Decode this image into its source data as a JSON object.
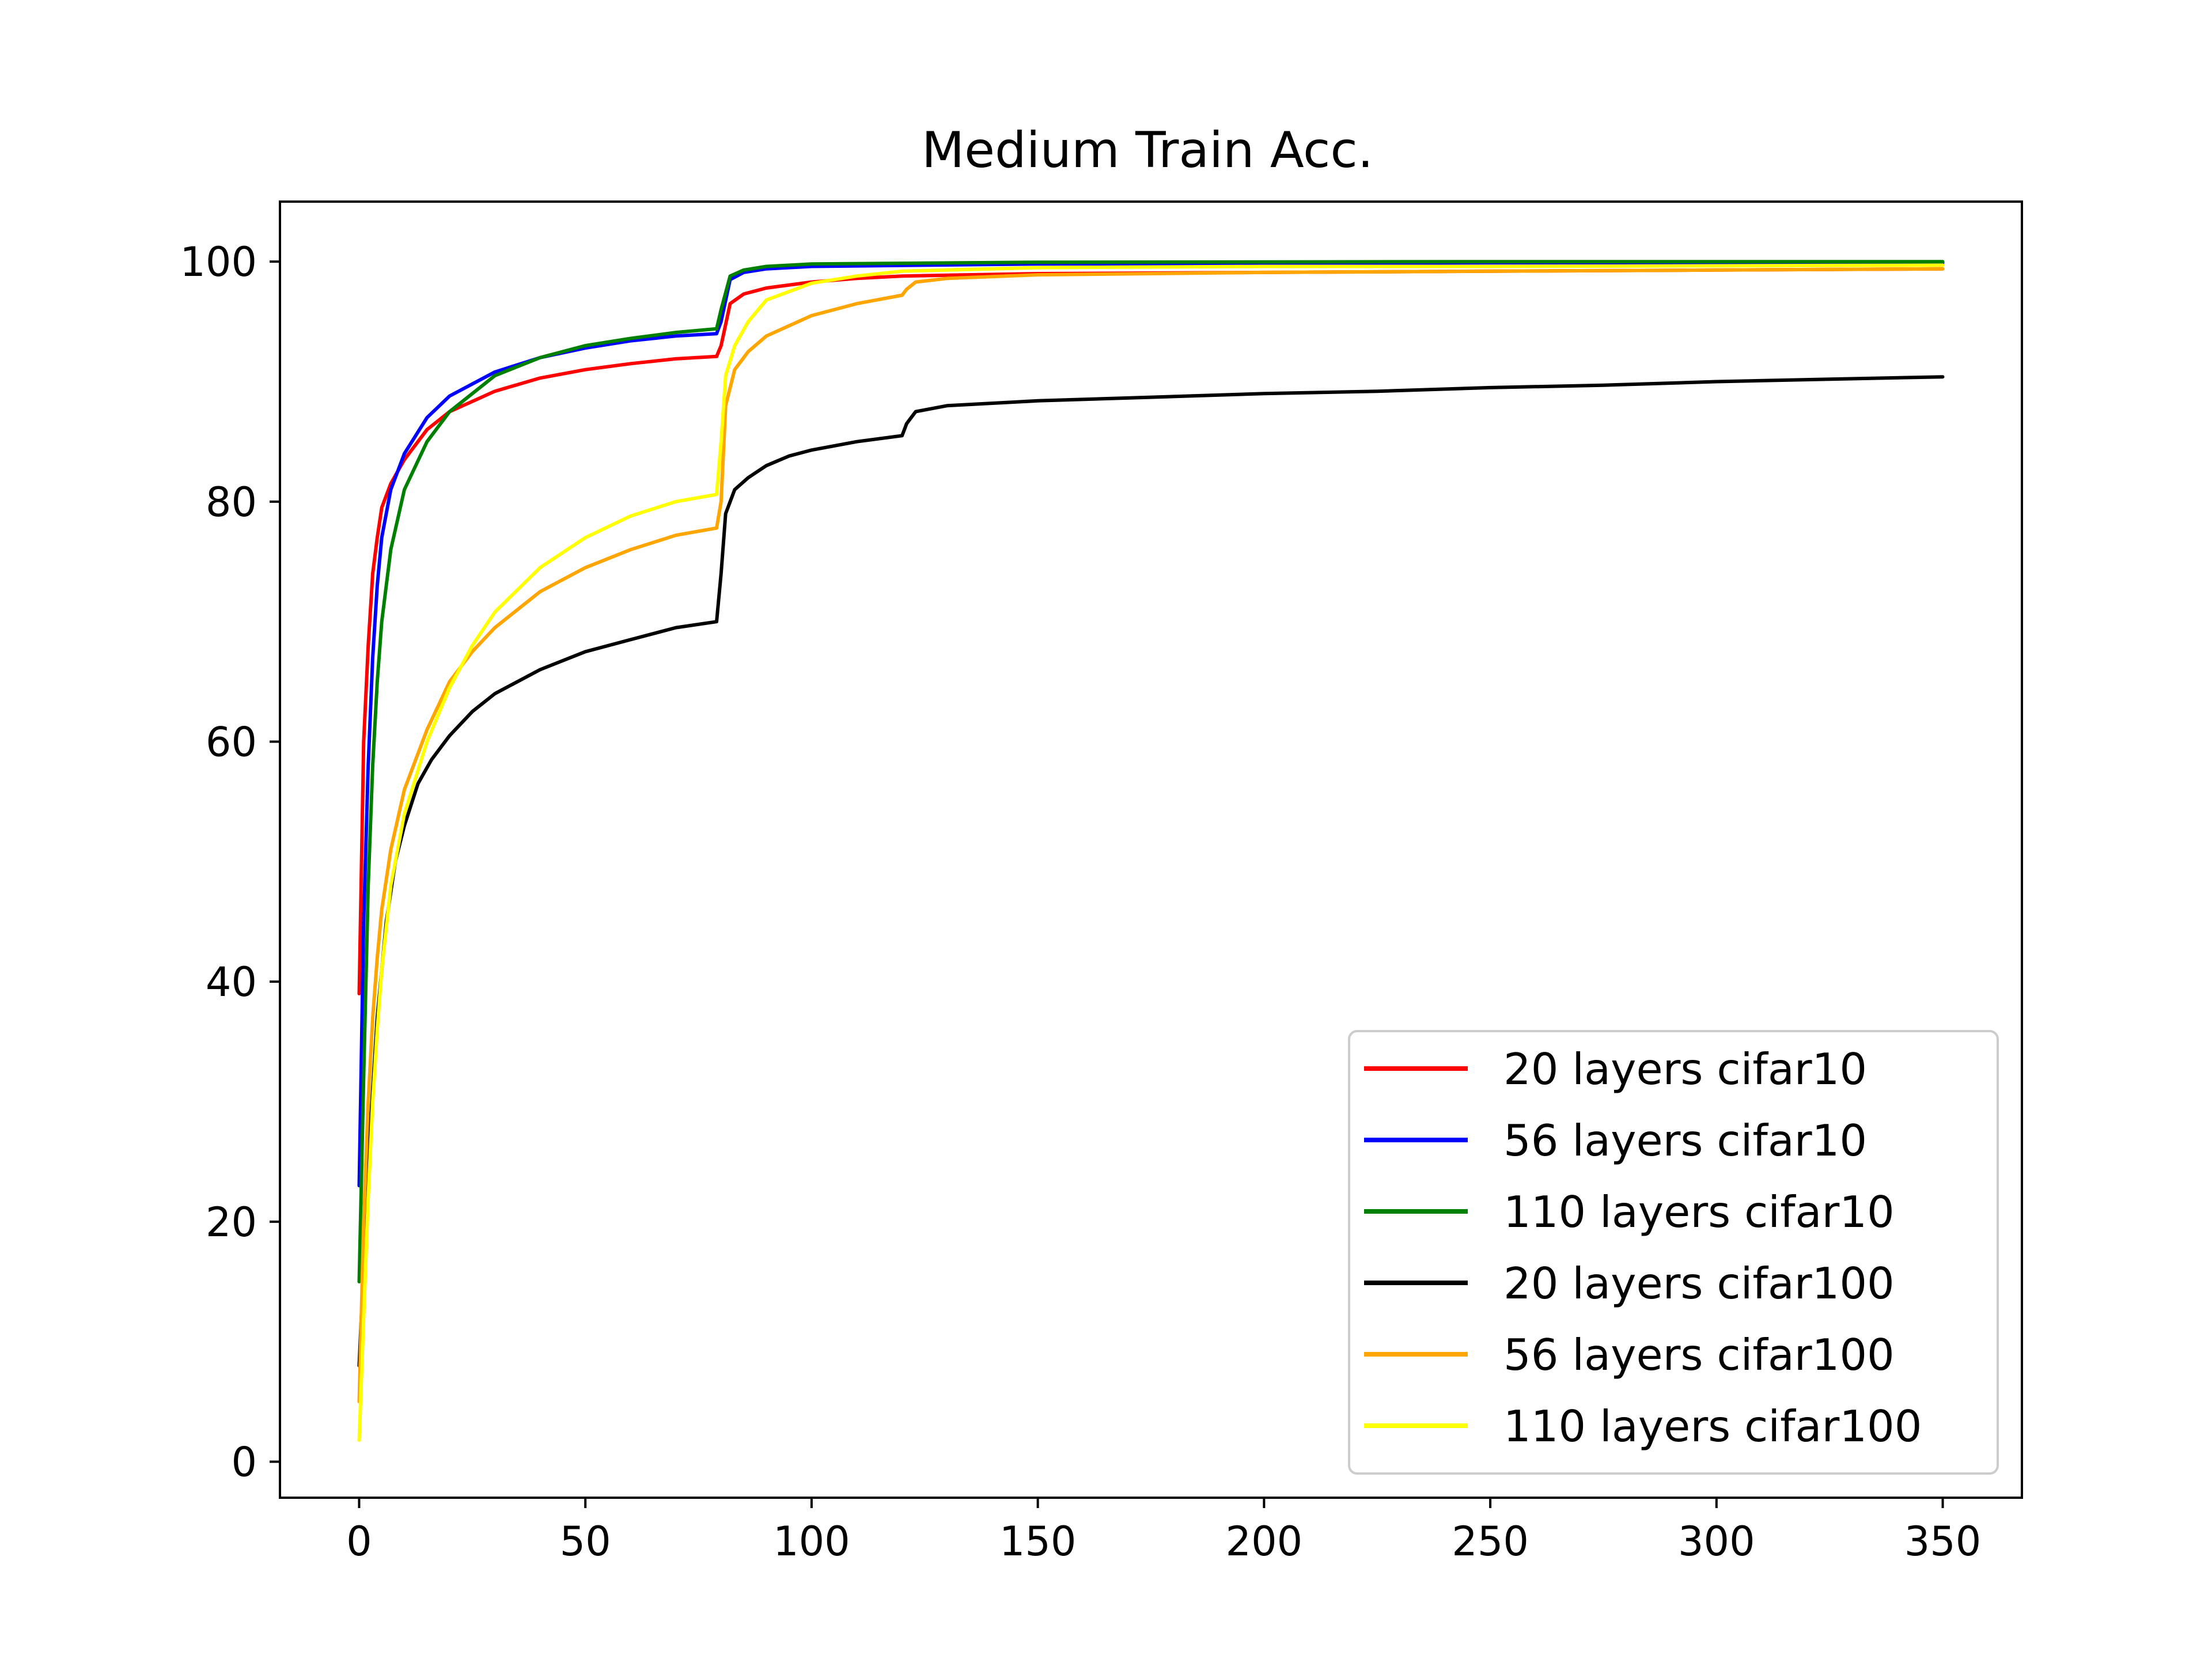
{
  "chart_data": {
    "type": "line",
    "title": "Medium Train Acc.",
    "xlabel": "",
    "ylabel": "",
    "xlim": [
      -17.5,
      367.5
    ],
    "ylim": [
      -3.0,
      105.0
    ],
    "xticks": [
      0,
      50,
      100,
      150,
      200,
      250,
      300,
      350
    ],
    "yticks": [
      0,
      20,
      40,
      60,
      80,
      100
    ],
    "grid": false,
    "legend_position": "lower-right",
    "series": [
      {
        "name": "20 layers cifar10",
        "color": "#ff0000",
        "points": [
          [
            0,
            39
          ],
          [
            1,
            60
          ],
          [
            2,
            68
          ],
          [
            3,
            74
          ],
          [
            4,
            77
          ],
          [
            5,
            79.5
          ],
          [
            7,
            81.5
          ],
          [
            10,
            83.5
          ],
          [
            15,
            86
          ],
          [
            20,
            87.5
          ],
          [
            30,
            89.2
          ],
          [
            40,
            90.3
          ],
          [
            50,
            91
          ],
          [
            60,
            91.5
          ],
          [
            70,
            91.9
          ],
          [
            79,
            92.1
          ],
          [
            80,
            93
          ],
          [
            82,
            96.5
          ],
          [
            85,
            97.3
          ],
          [
            90,
            97.8
          ],
          [
            100,
            98.3
          ],
          [
            110,
            98.6
          ],
          [
            120,
            98.8
          ],
          [
            150,
            99
          ],
          [
            200,
            99.1
          ],
          [
            250,
            99.2
          ],
          [
            300,
            99.3
          ],
          [
            350,
            99.4
          ]
        ]
      },
      {
        "name": "56 layers cifar10",
        "color": "#0000ff",
        "points": [
          [
            0,
            23
          ],
          [
            1,
            45
          ],
          [
            2,
            58
          ],
          [
            3,
            67
          ],
          [
            4,
            73
          ],
          [
            5,
            77
          ],
          [
            7,
            81
          ],
          [
            10,
            84
          ],
          [
            15,
            87
          ],
          [
            20,
            88.8
          ],
          [
            30,
            90.8
          ],
          [
            40,
            92
          ],
          [
            50,
            92.8
          ],
          [
            60,
            93.4
          ],
          [
            70,
            93.8
          ],
          [
            79,
            94
          ],
          [
            80,
            95
          ],
          [
            82,
            98.5
          ],
          [
            85,
            99.1
          ],
          [
            90,
            99.4
          ],
          [
            100,
            99.6
          ],
          [
            150,
            99.8
          ],
          [
            200,
            99.85
          ],
          [
            250,
            99.9
          ],
          [
            350,
            99.9
          ]
        ]
      },
      {
        "name": "110 layers cifar10",
        "color": "#008000",
        "points": [
          [
            0,
            15
          ],
          [
            1,
            32
          ],
          [
            2,
            48
          ],
          [
            3,
            58
          ],
          [
            4,
            65
          ],
          [
            5,
            70
          ],
          [
            7,
            76
          ],
          [
            10,
            81
          ],
          [
            15,
            85
          ],
          [
            20,
            87.5
          ],
          [
            30,
            90.5
          ],
          [
            40,
            92
          ],
          [
            50,
            93
          ],
          [
            60,
            93.6
          ],
          [
            70,
            94.1
          ],
          [
            79,
            94.4
          ],
          [
            80,
            96
          ],
          [
            82,
            98.8
          ],
          [
            85,
            99.3
          ],
          [
            90,
            99.6
          ],
          [
            100,
            99.8
          ],
          [
            150,
            99.95
          ],
          [
            250,
            100
          ],
          [
            350,
            100
          ]
        ]
      },
      {
        "name": "20 layers cifar100",
        "color": "#000000",
        "points": [
          [
            0,
            8
          ],
          [
            2,
            25
          ],
          [
            4,
            37
          ],
          [
            6,
            45
          ],
          [
            8,
            50
          ],
          [
            10,
            53
          ],
          [
            13,
            56.5
          ],
          [
            16,
            58.5
          ],
          [
            20,
            60.5
          ],
          [
            25,
            62.5
          ],
          [
            30,
            64
          ],
          [
            40,
            66
          ],
          [
            50,
            67.5
          ],
          [
            60,
            68.5
          ],
          [
            70,
            69.5
          ],
          [
            79,
            70
          ],
          [
            80,
            74
          ],
          [
            81,
            79
          ],
          [
            83,
            81
          ],
          [
            86,
            82
          ],
          [
            90,
            83
          ],
          [
            95,
            83.8
          ],
          [
            100,
            84.3
          ],
          [
            110,
            85
          ],
          [
            120,
            85.5
          ],
          [
            121,
            86.5
          ],
          [
            123,
            87.5
          ],
          [
            130,
            88
          ],
          [
            150,
            88.4
          ],
          [
            175,
            88.7
          ],
          [
            200,
            89
          ],
          [
            225,
            89.2
          ],
          [
            250,
            89.5
          ],
          [
            275,
            89.7
          ],
          [
            300,
            90
          ],
          [
            325,
            90.2
          ],
          [
            350,
            90.4
          ]
        ]
      },
      {
        "name": "56 layers cifar100",
        "color": "#ffa500",
        "points": [
          [
            0,
            5
          ],
          [
            1,
            20
          ],
          [
            2,
            30
          ],
          [
            3,
            37
          ],
          [
            4,
            42
          ],
          [
            5,
            46
          ],
          [
            7,
            51
          ],
          [
            10,
            56
          ],
          [
            15,
            61
          ],
          [
            20,
            65
          ],
          [
            25,
            67.5
          ],
          [
            30,
            69.5
          ],
          [
            40,
            72.5
          ],
          [
            50,
            74.5
          ],
          [
            60,
            76
          ],
          [
            70,
            77.2
          ],
          [
            79,
            77.8
          ],
          [
            80,
            80
          ],
          [
            81,
            88
          ],
          [
            83,
            91
          ],
          [
            86,
            92.5
          ],
          [
            90,
            93.8
          ],
          [
            100,
            95.5
          ],
          [
            110,
            96.5
          ],
          [
            120,
            97.2
          ],
          [
            121,
            97.7
          ],
          [
            123,
            98.3
          ],
          [
            130,
            98.6
          ],
          [
            150,
            98.9
          ],
          [
            200,
            99.1
          ],
          [
            250,
            99.2
          ],
          [
            300,
            99.3
          ],
          [
            350,
            99.4
          ]
        ]
      },
      {
        "name": "110 layers cifar100",
        "color": "#ffff00",
        "points": [
          [
            0,
            1.8
          ],
          [
            1,
            12
          ],
          [
            2,
            22
          ],
          [
            3,
            30
          ],
          [
            4,
            36
          ],
          [
            5,
            41
          ],
          [
            7,
            48
          ],
          [
            10,
            54
          ],
          [
            15,
            60
          ],
          [
            20,
            64.5
          ],
          [
            25,
            68
          ],
          [
            30,
            70.8
          ],
          [
            40,
            74.5
          ],
          [
            50,
            77
          ],
          [
            60,
            78.8
          ],
          [
            70,
            80
          ],
          [
            79,
            80.6
          ],
          [
            80,
            85
          ],
          [
            81,
            90.5
          ],
          [
            83,
            93
          ],
          [
            86,
            95
          ],
          [
            90,
            96.8
          ],
          [
            100,
            98.2
          ],
          [
            110,
            98.8
          ],
          [
            120,
            99.2
          ],
          [
            150,
            99.5
          ],
          [
            200,
            99.6
          ],
          [
            250,
            99.6
          ],
          [
            350,
            99.7
          ]
        ]
      }
    ]
  }
}
